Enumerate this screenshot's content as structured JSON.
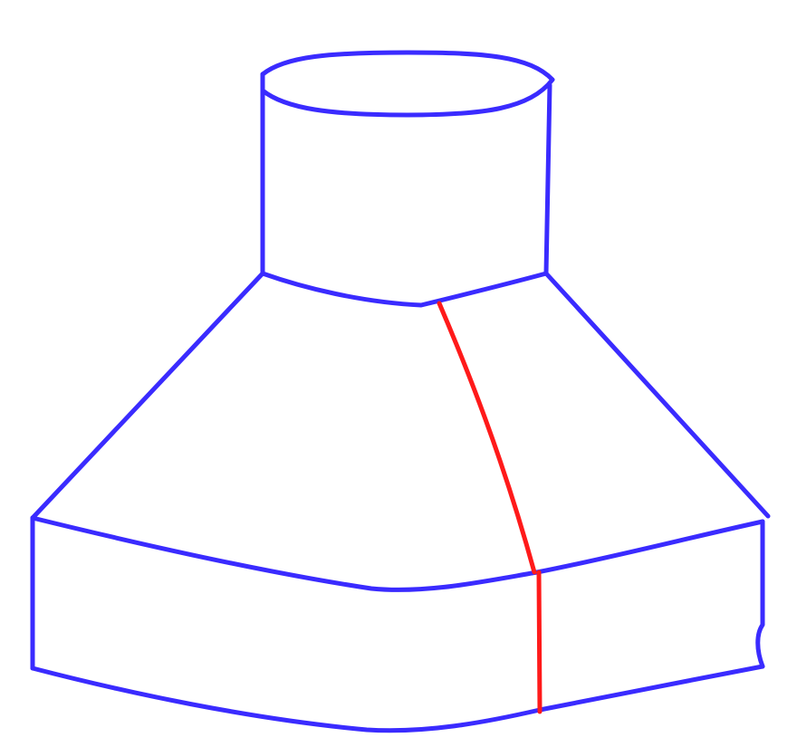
{
  "diagram": {
    "kind": "3d-solid-wireframe",
    "parts": [
      "top-ellipse",
      "cylinder",
      "frustum",
      "base-prism"
    ],
    "colors": {
      "outline": "#3a2bff",
      "seam": "#ff1a1a",
      "background": "#ffffff"
    }
  }
}
